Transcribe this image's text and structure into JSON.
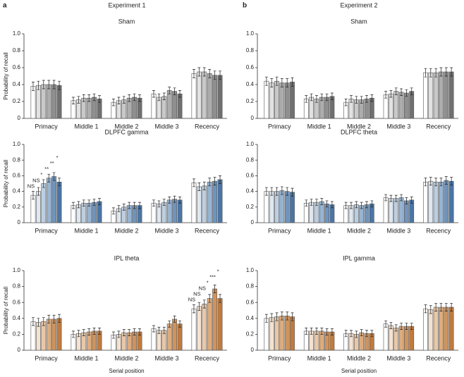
{
  "figure": {
    "columns": [
      {
        "label": "a",
        "title": "Experiment 1"
      },
      {
        "label": "b",
        "title": "Experiment 2"
      }
    ]
  },
  "chart_data": [
    {
      "type": "bar",
      "title": "Sham",
      "ylabel": "Probability of recall",
      "categories": [
        "Primacy",
        "Middle 1",
        "Middle 2",
        "Middle 3",
        "Recency"
      ],
      "ylim": [
        0,
        1
      ],
      "yticks": [
        0,
        0.2,
        0.4,
        0.6,
        0.8,
        {
          "value": 1,
          "label": "1.0"
        }
      ],
      "series": [
        {
          "color": "#ffffff",
          "values": [
            0.38,
            0.21,
            0.19,
            0.29,
            0.53
          ],
          "errors": [
            0.05,
            0.04,
            0.04,
            0.04,
            0.05
          ]
        },
        {
          "color": "#e2e2e2",
          "values": [
            0.39,
            0.22,
            0.21,
            0.25,
            0.55
          ],
          "errors": [
            0.05,
            0.04,
            0.04,
            0.04,
            0.05
          ]
        },
        {
          "color": "#c9c9c9",
          "values": [
            0.4,
            0.24,
            0.22,
            0.26,
            0.55
          ],
          "errors": [
            0.05,
            0.04,
            0.04,
            0.04,
            0.05
          ]
        },
        {
          "color": "#adadad",
          "values": [
            0.4,
            0.24,
            0.24,
            0.33,
            0.53
          ],
          "errors": [
            0.05,
            0.04,
            0.04,
            0.04,
            0.05
          ]
        },
        {
          "color": "#8f8f8f",
          "values": [
            0.4,
            0.25,
            0.25,
            0.32,
            0.51
          ],
          "errors": [
            0.05,
            0.04,
            0.04,
            0.04,
            0.05
          ]
        },
        {
          "color": "#707070",
          "values": [
            0.39,
            0.23,
            0.24,
            0.29,
            0.51
          ],
          "errors": [
            0.05,
            0.04,
            0.04,
            0.04,
            0.05
          ]
        }
      ]
    },
    {
      "type": "bar",
      "title": "Sham",
      "categories": [
        "Primacy",
        "Middle 1",
        "Middle 2",
        "Middle 3",
        "Recency"
      ],
      "ylim": [
        0,
        1
      ],
      "yticks": [
        0,
        0.2,
        0.4,
        0.6,
        0.8,
        {
          "value": 1,
          "label": "1.0"
        }
      ],
      "series": [
        {
          "color": "#ffffff",
          "values": [
            0.44,
            0.23,
            0.19,
            0.28,
            0.54
          ],
          "errors": [
            0.05,
            0.04,
            0.04,
            0.04,
            0.05
          ]
        },
        {
          "color": "#e2e2e2",
          "values": [
            0.42,
            0.25,
            0.23,
            0.29,
            0.54
          ],
          "errors": [
            0.05,
            0.04,
            0.04,
            0.04,
            0.05
          ]
        },
        {
          "color": "#c9c9c9",
          "values": [
            0.44,
            0.23,
            0.22,
            0.32,
            0.54
          ],
          "errors": [
            0.05,
            0.04,
            0.04,
            0.04,
            0.05
          ]
        },
        {
          "color": "#adadad",
          "values": [
            0.42,
            0.25,
            0.22,
            0.31,
            0.55
          ],
          "errors": [
            0.05,
            0.04,
            0.04,
            0.04,
            0.05
          ]
        },
        {
          "color": "#8f8f8f",
          "values": [
            0.42,
            0.25,
            0.23,
            0.3,
            0.55
          ],
          "errors": [
            0.05,
            0.04,
            0.04,
            0.04,
            0.05
          ]
        },
        {
          "color": "#707070",
          "values": [
            0.43,
            0.26,
            0.24,
            0.32,
            0.55
          ],
          "errors": [
            0.05,
            0.04,
            0.04,
            0.04,
            0.05
          ]
        }
      ]
    },
    {
      "type": "bar",
      "title": "DLPFC gamma",
      "ylabel": "Probability of recall",
      "categories": [
        "Primacy",
        "Middle 1",
        "Middle 2",
        "Middle 3",
        "Recency"
      ],
      "ylim": [
        0,
        1
      ],
      "yticks": [
        0,
        0.2,
        0.4,
        0.6,
        0.8,
        {
          "value": 1,
          "label": "1.0"
        }
      ],
      "series": [
        {
          "color": "#ffffff",
          "values": [
            0.35,
            0.22,
            0.15,
            0.25,
            0.51
          ],
          "errors": [
            0.05,
            0.04,
            0.04,
            0.04,
            0.05
          ],
          "annotations": [
            "NS",
            null,
            null,
            null,
            null
          ]
        },
        {
          "color": "#dfe7f0",
          "values": [
            0.4,
            0.23,
            0.18,
            0.24,
            0.46
          ],
          "errors": [
            0.05,
            0.04,
            0.04,
            0.04,
            0.05
          ],
          "annotations": [
            "NS",
            null,
            null,
            null,
            null
          ]
        },
        {
          "color": "#bccfe2",
          "values": [
            0.5,
            0.25,
            0.2,
            0.26,
            0.47
          ],
          "errors": [
            0.05,
            0.04,
            0.04,
            0.04,
            0.05
          ],
          "annotations": [
            "*",
            null,
            null,
            null,
            null
          ]
        },
        {
          "color": "#97b4d2",
          "values": [
            0.57,
            0.25,
            0.22,
            0.29,
            0.52
          ],
          "errors": [
            0.05,
            0.04,
            0.04,
            0.04,
            0.05
          ],
          "annotations": [
            "**",
            null,
            null,
            null,
            null
          ]
        },
        {
          "color": "#6f94bd",
          "values": [
            0.59,
            0.26,
            0.22,
            0.3,
            0.53
          ],
          "errors": [
            0.05,
            0.04,
            0.04,
            0.04,
            0.05
          ],
          "annotations": [
            "**",
            null,
            null,
            null,
            null
          ]
        },
        {
          "color": "#4a76a6",
          "values": [
            0.52,
            0.27,
            0.22,
            0.29,
            0.55
          ],
          "errors": [
            0.05,
            0.04,
            0.04,
            0.04,
            0.05
          ],
          "annotations": [
            "*",
            null,
            null,
            null,
            null
          ]
        }
      ]
    },
    {
      "type": "bar",
      "title": "DLPFC theta",
      "categories": [
        "Primacy",
        "Middle 1",
        "Middle 2",
        "Middle 3",
        "Recency"
      ],
      "ylim": [
        0,
        1
      ],
      "yticks": [
        0,
        0.2,
        0.4,
        0.6,
        0.8,
        {
          "value": 1,
          "label": "1.0"
        }
      ],
      "series": [
        {
          "color": "#ffffff",
          "values": [
            0.4,
            0.25,
            0.22,
            0.32,
            0.52
          ],
          "errors": [
            0.05,
            0.04,
            0.04,
            0.04,
            0.05
          ]
        },
        {
          "color": "#dfe7f0",
          "values": [
            0.4,
            0.26,
            0.22,
            0.31,
            0.53
          ],
          "errors": [
            0.05,
            0.04,
            0.04,
            0.04,
            0.05
          ]
        },
        {
          "color": "#bccfe2",
          "values": [
            0.4,
            0.26,
            0.23,
            0.31,
            0.52
          ],
          "errors": [
            0.05,
            0.04,
            0.04,
            0.04,
            0.05
          ]
        },
        {
          "color": "#97b4d2",
          "values": [
            0.41,
            0.27,
            0.22,
            0.32,
            0.52
          ],
          "errors": [
            0.05,
            0.04,
            0.04,
            0.04,
            0.05
          ]
        },
        {
          "color": "#6f94bd",
          "values": [
            0.4,
            0.24,
            0.23,
            0.28,
            0.54
          ],
          "errors": [
            0.05,
            0.04,
            0.04,
            0.04,
            0.05
          ]
        },
        {
          "color": "#4a76a6",
          "values": [
            0.39,
            0.23,
            0.24,
            0.29,
            0.53
          ],
          "errors": [
            0.05,
            0.04,
            0.04,
            0.04,
            0.05
          ]
        }
      ]
    },
    {
      "type": "bar",
      "title": "IPL theta",
      "ylabel": "Probability of recall",
      "xlabel": "Serial position",
      "categories": [
        "Primacy",
        "Middle 1",
        "Middle 2",
        "Middle 3",
        "Recency"
      ],
      "ylim": [
        0,
        1
      ],
      "yticks": [
        0,
        0.2,
        0.4,
        0.6,
        0.8,
        {
          "value": 1,
          "label": "1.0"
        }
      ],
      "series": [
        {
          "color": "#ffffff",
          "values": [
            0.36,
            0.2,
            0.19,
            0.27,
            0.52
          ],
          "errors": [
            0.05,
            0.04,
            0.04,
            0.04,
            0.05
          ],
          "annotations": [
            null,
            null,
            null,
            null,
            "NS"
          ]
        },
        {
          "color": "#f4e2d0",
          "values": [
            0.35,
            0.21,
            0.2,
            0.25,
            0.55
          ],
          "errors": [
            0.05,
            0.04,
            0.04,
            0.04,
            0.05
          ],
          "annotations": [
            null,
            null,
            null,
            null,
            "NS"
          ]
        },
        {
          "color": "#e9c8a8",
          "values": [
            0.36,
            0.22,
            0.22,
            0.25,
            0.58
          ],
          "errors": [
            0.05,
            0.04,
            0.04,
            0.04,
            0.05
          ],
          "annotations": [
            null,
            null,
            null,
            null,
            "NS"
          ]
        },
        {
          "color": "#ddac7e",
          "values": [
            0.39,
            0.23,
            0.22,
            0.33,
            0.65
          ],
          "errors": [
            0.05,
            0.04,
            0.04,
            0.04,
            0.05
          ],
          "annotations": [
            null,
            null,
            null,
            null,
            "*"
          ]
        },
        {
          "color": "#d0935b",
          "values": [
            0.39,
            0.24,
            0.23,
            0.39,
            0.77
          ],
          "errors": [
            0.05,
            0.04,
            0.04,
            0.04,
            0.05
          ],
          "annotations": [
            null,
            null,
            null,
            null,
            "***"
          ]
        },
        {
          "color": "#c07b3f",
          "values": [
            0.4,
            0.24,
            0.23,
            0.33,
            0.65
          ],
          "errors": [
            0.05,
            0.04,
            0.04,
            0.04,
            0.05
          ],
          "annotations": [
            null,
            null,
            null,
            null,
            "*"
          ]
        }
      ]
    },
    {
      "type": "bar",
      "title": "IPL gamma",
      "xlabel": "Serial position",
      "categories": [
        "Primacy",
        "Middle 1",
        "Middle 2",
        "Middle 3",
        "Recency"
      ],
      "ylim": [
        0,
        1
      ],
      "yticks": [
        0,
        0.2,
        0.4,
        0.6,
        0.8,
        {
          "value": 1,
          "label": "1.0"
        }
      ],
      "series": [
        {
          "color": "#ffffff",
          "values": [
            0.4,
            0.24,
            0.21,
            0.33,
            0.52
          ],
          "errors": [
            0.05,
            0.04,
            0.04,
            0.04,
            0.05
          ]
        },
        {
          "color": "#f4e2d0",
          "values": [
            0.41,
            0.24,
            0.21,
            0.31,
            0.51
          ],
          "errors": [
            0.05,
            0.04,
            0.04,
            0.04,
            0.05
          ]
        },
        {
          "color": "#e9c8a8",
          "values": [
            0.42,
            0.24,
            0.2,
            0.28,
            0.54
          ],
          "errors": [
            0.05,
            0.04,
            0.04,
            0.04,
            0.05
          ]
        },
        {
          "color": "#ddac7e",
          "values": [
            0.43,
            0.24,
            0.22,
            0.3,
            0.54
          ],
          "errors": [
            0.05,
            0.04,
            0.04,
            0.04,
            0.05
          ]
        },
        {
          "color": "#d0935b",
          "values": [
            0.43,
            0.23,
            0.21,
            0.3,
            0.54
          ],
          "errors": [
            0.05,
            0.04,
            0.04,
            0.04,
            0.05
          ]
        },
        {
          "color": "#c07b3f",
          "values": [
            0.42,
            0.23,
            0.21,
            0.3,
            0.54
          ],
          "errors": [
            0.05,
            0.04,
            0.04,
            0.04,
            0.05
          ]
        }
      ]
    }
  ]
}
